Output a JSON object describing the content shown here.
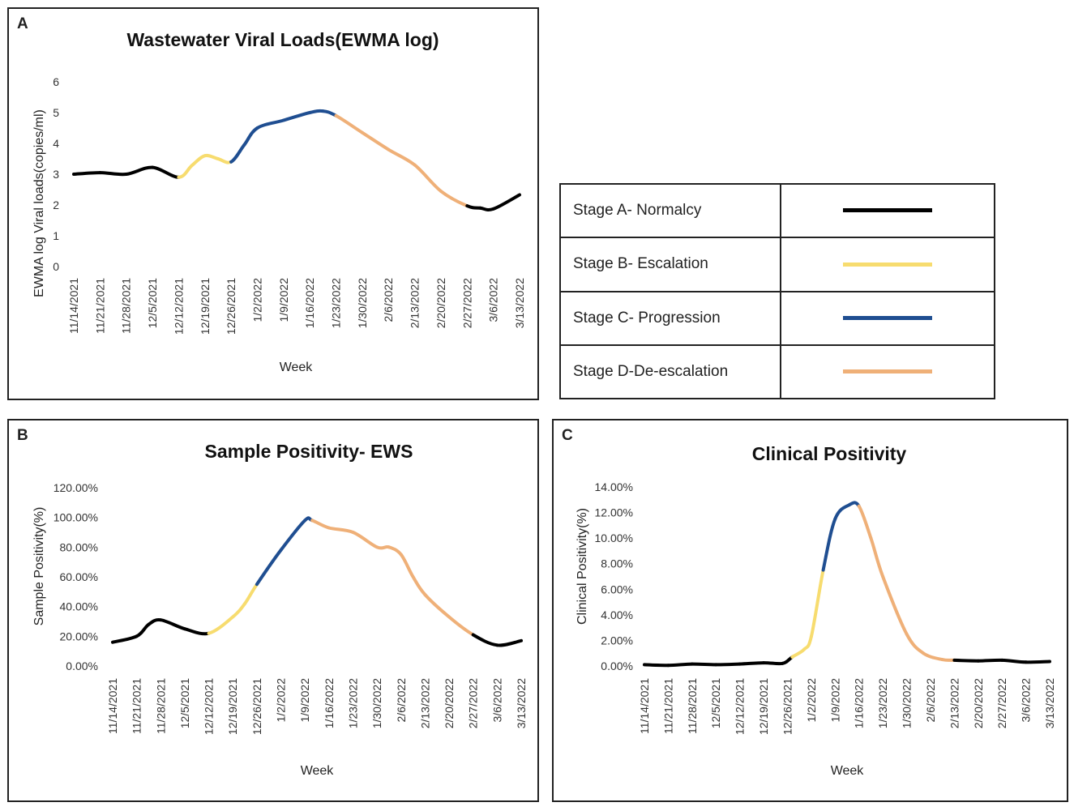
{
  "panels": {
    "a": "A",
    "b": "B",
    "c": "C"
  },
  "stage_colors": {
    "A": "#000000",
    "B": "#f7dc6f",
    "C": "#1f4e91",
    "D": "#efb078"
  },
  "legend": {
    "rows": [
      {
        "label": "Stage A- Normalcy",
        "stage": "A"
      },
      {
        "label": "Stage B- Escalation",
        "stage": "B"
      },
      {
        "label": "Stage C- Progression",
        "stage": "C"
      },
      {
        "label": "Stage D-De-escalation",
        "stage": "D"
      }
    ]
  },
  "chart_data": [
    {
      "id": "a",
      "type": "line",
      "title": "Wastewater Viral Loads(EWMA log)",
      "xlabel": "Week",
      "ylabel": "EWMA log Viral loads(copies/ml)",
      "categories": [
        "11/14/2021",
        "11/21/2021",
        "11/28/2021",
        "12/5/2021",
        "12/12/2021",
        "12/19/2021",
        "12/26/2021",
        "1/2/2022",
        "1/9/2022",
        "1/16/2022",
        "1/23/2022",
        "1/30/2022",
        "2/6/2022",
        "2/13/2022",
        "2/20/2022",
        "2/27/2022",
        "3/6/2022",
        "3/13/2022"
      ],
      "yticks": [
        "0",
        "1",
        "2",
        "3",
        "4",
        "5",
        "6"
      ],
      "ylim": [
        0,
        6
      ],
      "x": [
        0,
        1,
        2,
        3,
        4,
        4.5,
        5,
        5.5,
        6,
        6.5,
        7,
        8,
        9,
        9.5,
        10,
        11,
        12,
        13,
        14,
        15,
        15.5,
        16,
        17
      ],
      "values": [
        3.0,
        3.05,
        3.0,
        3.22,
        2.9,
        3.28,
        3.6,
        3.5,
        3.4,
        3.95,
        4.5,
        4.75,
        5.0,
        5.05,
        4.9,
        4.35,
        3.8,
        3.3,
        2.45,
        1.97,
        1.9,
        1.87,
        2.33
      ],
      "stages": [
        "A",
        "A",
        "A",
        "A",
        "B",
        "B",
        "B",
        "B",
        "C",
        "C",
        "C",
        "C",
        "C",
        "C",
        "D",
        "D",
        "D",
        "D",
        "D",
        "A",
        "A",
        "A",
        "A"
      ],
      "grid": false
    },
    {
      "id": "b",
      "type": "line",
      "title": "Sample Positivity- EWS",
      "xlabel": "Week",
      "ylabel": "Sample Positivity(%)",
      "categories": [
        "11/14/2021",
        "11/21/2021",
        "11/28/2021",
        "12/5/2021",
        "12/12/2021",
        "12/19/2021",
        "12/26/2021",
        "1/2/2022",
        "1/9/2022",
        "1/16/2022",
        "1/23/2022",
        "1/30/2022",
        "2/6/2022",
        "2/13/2022",
        "2/20/2022",
        "2/27/2022",
        "3/6/2022",
        "3/13/2022"
      ],
      "yticks": [
        "0.00%",
        "20.00%",
        "40.00%",
        "60.00%",
        "80.00%",
        "100.00%",
        "120.00%"
      ],
      "ylim": [
        0,
        120
      ],
      "x": [
        0,
        1,
        1.5,
        2,
        3,
        4,
        5,
        5.5,
        6,
        7,
        8,
        8.3,
        9,
        10,
        11,
        11.5,
        12,
        12.5,
        13,
        14,
        15,
        16,
        17
      ],
      "values": [
        16,
        20,
        28,
        31,
        25,
        22,
        33,
        42,
        55,
        78,
        98,
        98,
        93,
        90,
        80,
        80,
        75,
        60,
        48,
        33,
        21,
        14,
        17
      ],
      "stages": [
        "A",
        "A",
        "A",
        "A",
        "A",
        "B",
        "B",
        "B",
        "C",
        "C",
        "C",
        "D",
        "D",
        "D",
        "D",
        "D",
        "D",
        "D",
        "D",
        "D",
        "A",
        "A",
        "A"
      ],
      "grid": false
    },
    {
      "id": "c",
      "type": "line",
      "title": "Clinical Positivity",
      "xlabel": "Week",
      "ylabel": "Clinical Positivity(%)",
      "categories": [
        "11/14/2021",
        "11/21/2021",
        "11/28/2021",
        "12/5/2021",
        "12/12/2021",
        "12/19/2021",
        "12/26/2021",
        "1/2/2022",
        "1/9/2022",
        "1/16/2022",
        "1/23/2022",
        "1/30/2022",
        "2/6/2022",
        "2/13/2022",
        "2/20/2022",
        "2/27/2022",
        "3/6/2022",
        "3/13/2022"
      ],
      "yticks": [
        "0.00%",
        "2.00%",
        "4.00%",
        "6.00%",
        "8.00%",
        "10.00%",
        "12.00%",
        "14.00%"
      ],
      "ylim": [
        0,
        14
      ],
      "x": [
        0,
        1,
        2,
        3,
        4,
        5,
        5.8,
        6.2,
        6.7,
        7,
        7.5,
        8,
        8.6,
        9,
        9.5,
        10,
        11,
        11.7,
        12.5,
        13,
        14,
        15,
        16,
        17
      ],
      "values": [
        0.1,
        0.05,
        0.15,
        0.1,
        0.15,
        0.25,
        0.2,
        0.7,
        1.3,
        2.3,
        7.5,
        11.5,
        12.6,
        12.5,
        10.0,
        7.0,
        2.5,
        1.0,
        0.5,
        0.45,
        0.4,
        0.45,
        0.3,
        0.35
      ],
      "stages": [
        "A",
        "A",
        "A",
        "A",
        "A",
        "A",
        "A",
        "B",
        "B",
        "B",
        "C",
        "C",
        "C",
        "D",
        "D",
        "D",
        "D",
        "D",
        "D",
        "A",
        "A",
        "A",
        "A",
        "A"
      ],
      "grid": false
    }
  ]
}
